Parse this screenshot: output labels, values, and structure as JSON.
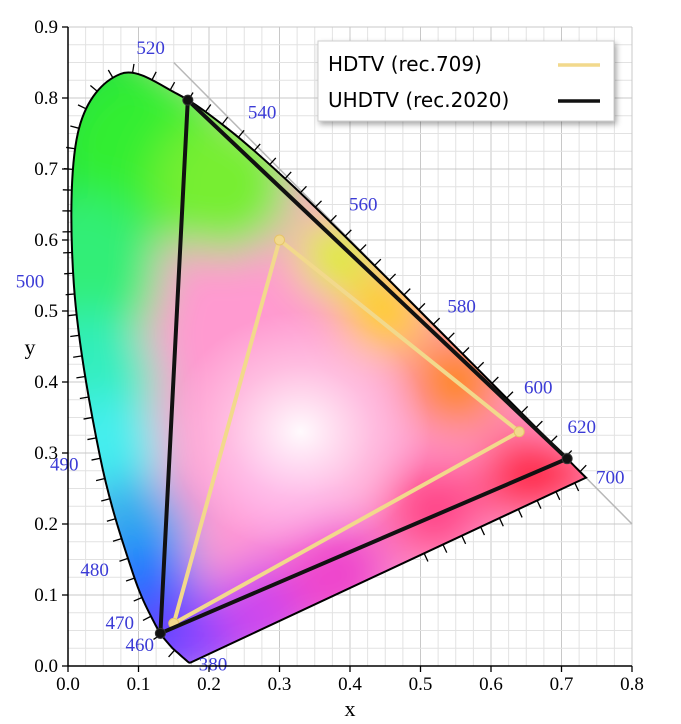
{
  "chart_data": {
    "type": "scatter",
    "subtype": "CIE 1931 chromaticity diagram",
    "title": "",
    "xlabel": "x",
    "ylabel": "y",
    "xlim": [
      0.0,
      0.8
    ],
    "ylim": [
      0.0,
      0.9
    ],
    "x_ticks": [
      "0.0",
      "0.1",
      "0.2",
      "0.3",
      "0.4",
      "0.5",
      "0.6",
      "0.7",
      "0.8"
    ],
    "y_ticks": [
      "0.0",
      "0.1",
      "0.2",
      "0.3",
      "0.4",
      "0.5",
      "0.6",
      "0.7",
      "0.8",
      "0.9"
    ],
    "grid": true,
    "legend_position": "top-right",
    "spectral_locus": [
      [
        0.1741,
        0.005
      ],
      [
        0.1738,
        0.0049
      ],
      [
        0.1736,
        0.005
      ],
      [
        0.1733,
        0.0048
      ],
      [
        0.1726,
        0.0048
      ],
      [
        0.1714,
        0.0051
      ],
      [
        0.1689,
        0.0069
      ],
      [
        0.1644,
        0.0109
      ],
      [
        0.1566,
        0.0177
      ],
      [
        0.144,
        0.0297
      ],
      [
        0.1241,
        0.0578
      ],
      [
        0.0913,
        0.1327
      ],
      [
        0.0454,
        0.295
      ],
      [
        0.0082,
        0.5384
      ],
      [
        0.0139,
        0.7502
      ],
      [
        0.0743,
        0.8338
      ],
      [
        0.1547,
        0.8059
      ],
      [
        0.2296,
        0.7543
      ],
      [
        0.3016,
        0.6923
      ],
      [
        0.3731,
        0.6245
      ],
      [
        0.4441,
        0.5547
      ],
      [
        0.5125,
        0.4866
      ],
      [
        0.5752,
        0.4242
      ],
      [
        0.627,
        0.3725
      ],
      [
        0.6658,
        0.334
      ],
      [
        0.6915,
        0.3083
      ],
      [
        0.7079,
        0.292
      ],
      [
        0.719,
        0.2809
      ],
      [
        0.726,
        0.274
      ],
      [
        0.73,
        0.27
      ],
      [
        0.7347,
        0.2653
      ]
    ],
    "wavelength_labels": [
      {
        "label": "380",
        "x": 0.1741,
        "y": 0.005
      },
      {
        "label": "460",
        "x": 0.144,
        "y": 0.0297
      },
      {
        "label": "470",
        "x": 0.1241,
        "y": 0.0578
      },
      {
        "label": "480",
        "x": 0.0913,
        "y": 0.1327
      },
      {
        "label": "490",
        "x": 0.0454,
        "y": 0.295
      },
      {
        "label": "500",
        "x": 0.0082,
        "y": 0.5384
      },
      {
        "label": "520",
        "x": 0.0743,
        "y": 0.8338
      },
      {
        "label": "540",
        "x": 0.2296,
        "y": 0.7543
      },
      {
        "label": "560",
        "x": 0.3731,
        "y": 0.6245
      },
      {
        "label": "580",
        "x": 0.5125,
        "y": 0.4866
      },
      {
        "label": "600",
        "x": 0.627,
        "y": 0.3725
      },
      {
        "label": "620",
        "x": 0.6915,
        "y": 0.3083
      },
      {
        "label": "700",
        "x": 0.7347,
        "y": 0.2653
      }
    ],
    "series": [
      {
        "name": "HDTV (rec.709)",
        "color": "#f2d98c",
        "points": [
          [
            0.64,
            0.33
          ],
          [
            0.3,
            0.6
          ],
          [
            0.15,
            0.06
          ]
        ]
      },
      {
        "name": "UHDTV (rec.2020)",
        "color": "#111111",
        "points": [
          [
            0.708,
            0.292
          ],
          [
            0.17,
            0.797
          ],
          [
            0.131,
            0.046
          ]
        ]
      }
    ],
    "reference_line": {
      "description": "x + y = 1 line",
      "x": [
        0.15,
        0.8
      ],
      "y": [
        0.85,
        0.2
      ],
      "color": "#b8b8b8"
    }
  }
}
